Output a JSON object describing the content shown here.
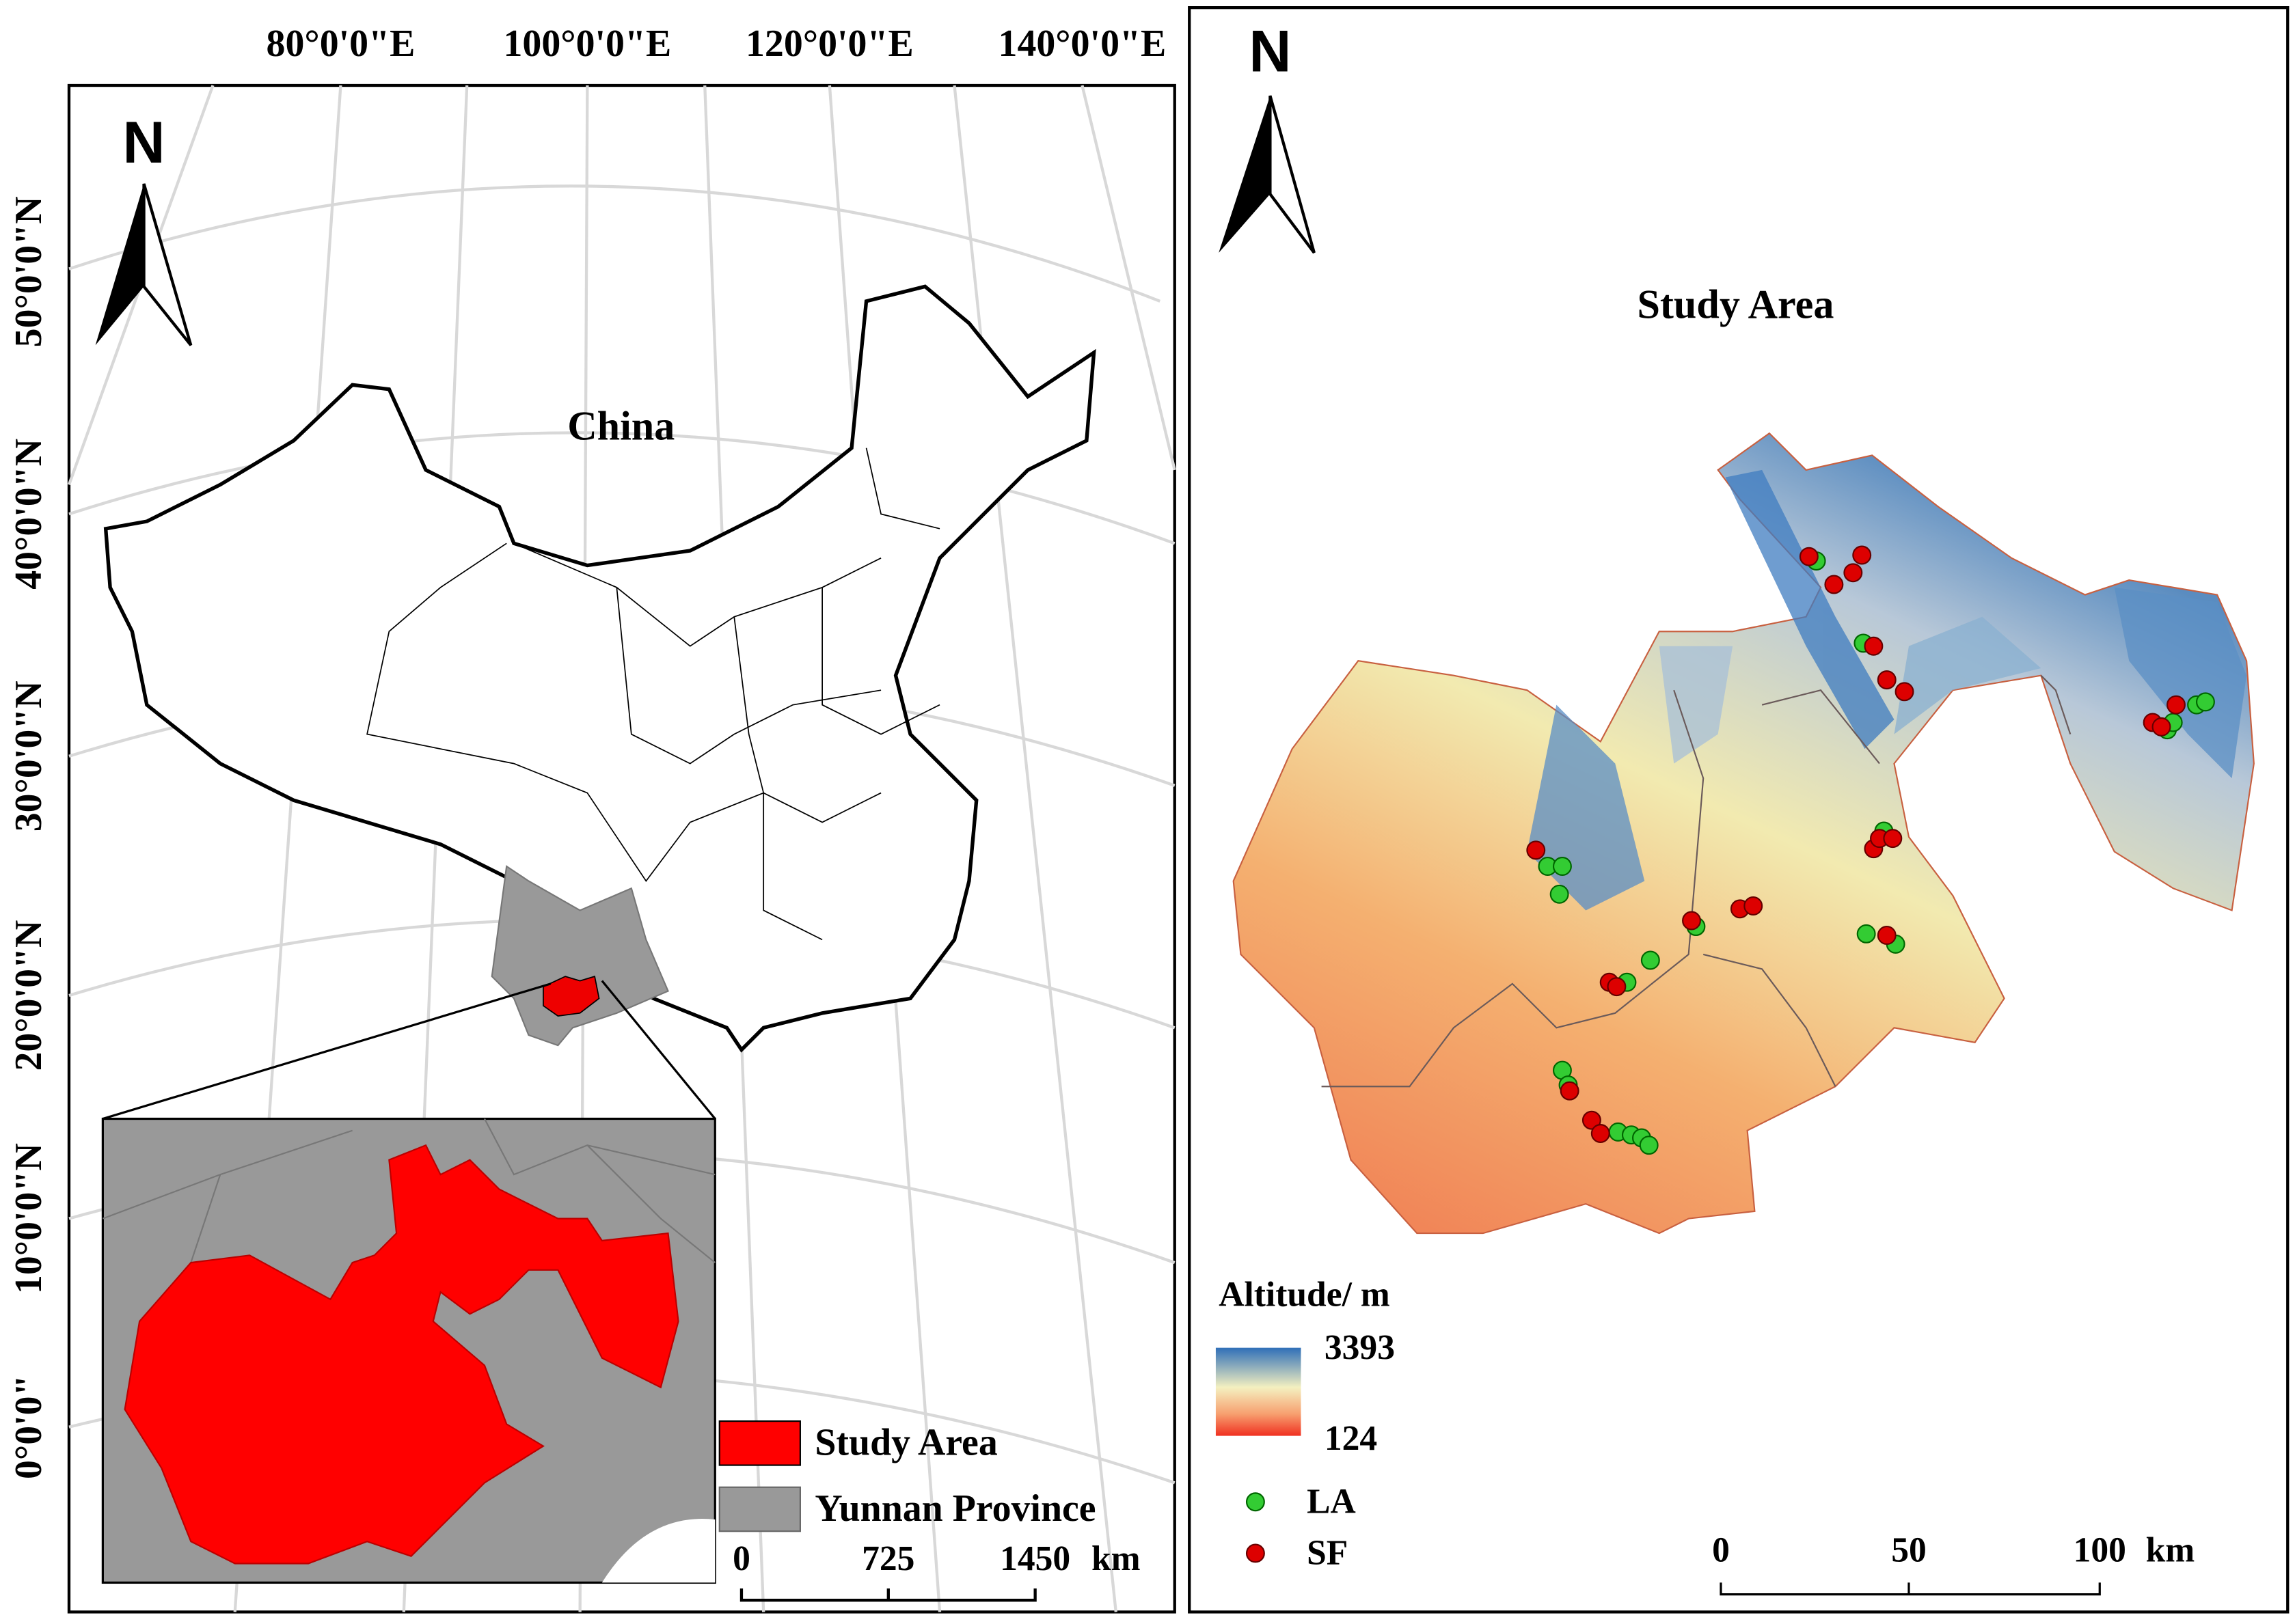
{
  "left_map": {
    "lon_labels": [
      "80°0'0\"E",
      "100°0'0\"E",
      "120°0'0\"E",
      "140°0'0\"E"
    ],
    "lat_labels": [
      "50°0'0\"N",
      "40°0'0\"N",
      "30°0'0\"N",
      "20°0'0\"N",
      "10°0'0\"N",
      "0°0'0\""
    ],
    "north": "N",
    "country_label": "China",
    "legend": [
      "Study Area",
      "Yunnan Province"
    ],
    "scale": [
      "0",
      "725",
      "1450",
      "km"
    ]
  },
  "right_map": {
    "north": "N",
    "title": "Study Area",
    "legend_title": "Altitude/ m",
    "ramp": [
      "3393",
      "124"
    ],
    "points_legend": [
      "LA",
      "SF"
    ],
    "scale": [
      "0",
      "50",
      "100",
      "km"
    ]
  }
}
